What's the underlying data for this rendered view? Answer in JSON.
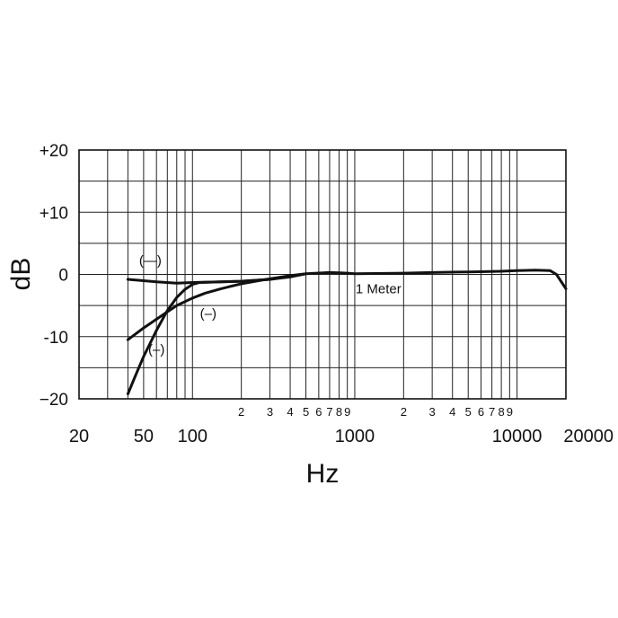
{
  "chart_data": {
    "type": "line",
    "title": "",
    "xlabel": "Hz",
    "ylabel": "dB",
    "x_scale": "log",
    "xlim": [
      20,
      20000
    ],
    "ylim": [
      -20,
      20
    ],
    "grid": true,
    "y_ticks": [
      {
        "value": 20,
        "label": "+20"
      },
      {
        "value": 10,
        "label": "+10"
      },
      {
        "value": 0,
        "label": "0"
      },
      {
        "value": -10,
        "label": "-10"
      },
      {
        "value": -20,
        "label": "−20"
      }
    ],
    "x_major_ticks": [
      {
        "value": 20,
        "label": "20"
      },
      {
        "value": 50,
        "label": "50"
      },
      {
        "value": 100,
        "label": "100"
      },
      {
        "value": 1000,
        "label": "1000"
      },
      {
        "value": 10000,
        "label": "10000"
      },
      {
        "value": 20000,
        "label": "20000"
      }
    ],
    "x_minor_ticks": [
      {
        "value": 200,
        "label": "2"
      },
      {
        "value": 300,
        "label": "3"
      },
      {
        "value": 400,
        "label": "4"
      },
      {
        "value": 500,
        "label": "5"
      },
      {
        "value": 600,
        "label": "6"
      },
      {
        "value": 700,
        "label": "7"
      },
      {
        "value": 800,
        "label": "8"
      },
      {
        "value": 900,
        "label": "9"
      },
      {
        "value": 2000,
        "label": "2"
      },
      {
        "value": 3000,
        "label": "3"
      },
      {
        "value": 4000,
        "label": "4"
      },
      {
        "value": 5000,
        "label": "5"
      },
      {
        "value": 6000,
        "label": "6"
      },
      {
        "value": 7000,
        "label": "7"
      },
      {
        "value": 8000,
        "label": "8"
      },
      {
        "value": 9000,
        "label": "9"
      }
    ],
    "grid_x": [
      20,
      30,
      40,
      50,
      60,
      70,
      80,
      90,
      100,
      200,
      300,
      400,
      500,
      600,
      700,
      800,
      900,
      1000,
      2000,
      3000,
      4000,
      5000,
      6000,
      7000,
      8000,
      9000,
      10000,
      20000
    ],
    "grid_y": [
      20,
      15,
      10,
      5,
      0,
      -5,
      -10,
      -15,
      -20
    ],
    "series": [
      {
        "name": "1 Meter",
        "x": [
          40,
          60,
          80,
          100,
          150,
          200,
          300,
          400,
          500,
          700,
          900,
          1000,
          2000,
          3000,
          5000,
          8000,
          10000,
          13000,
          16000,
          17500,
          20000
        ],
        "y": [
          -0.8,
          -1.2,
          -1.4,
          -1.3,
          -1.2,
          -1.1,
          -0.8,
          -0.4,
          0.1,
          0.3,
          0.2,
          0.1,
          0.2,
          0.3,
          0.4,
          0.5,
          0.6,
          0.7,
          0.6,
          0.0,
          -2.3
        ]
      },
      {
        "x": [
          40,
          50,
          60,
          70,
          80,
          100,
          120,
          150,
          200,
          300,
          400,
          500
        ],
        "y": [
          -10.5,
          -8.6,
          -7.2,
          -6.0,
          -5.0,
          -3.8,
          -3.0,
          -2.3,
          -1.5,
          -0.7,
          -0.2,
          0.1
        ]
      },
      {
        "x": [
          40,
          45,
          50,
          60,
          70,
          80,
          90,
          100,
          110,
          150,
          200,
          300,
          500
        ],
        "y": [
          -19.2,
          -16.0,
          -13.2,
          -9.0,
          -5.8,
          -3.7,
          -2.4,
          -1.6,
          -1.3,
          -1.2,
          -1.1,
          -0.8,
          0.1
        ]
      }
    ],
    "annotations": [
      {
        "text": "(—)",
        "x": 55,
        "y": 1.5
      },
      {
        "text": "(–)",
        "x": 125,
        "y": -7.0
      },
      {
        "text": "(–)",
        "x": 60,
        "y": -12.8
      },
      {
        "text": "1 Meter",
        "x": 1400,
        "y": -3.0
      }
    ]
  }
}
